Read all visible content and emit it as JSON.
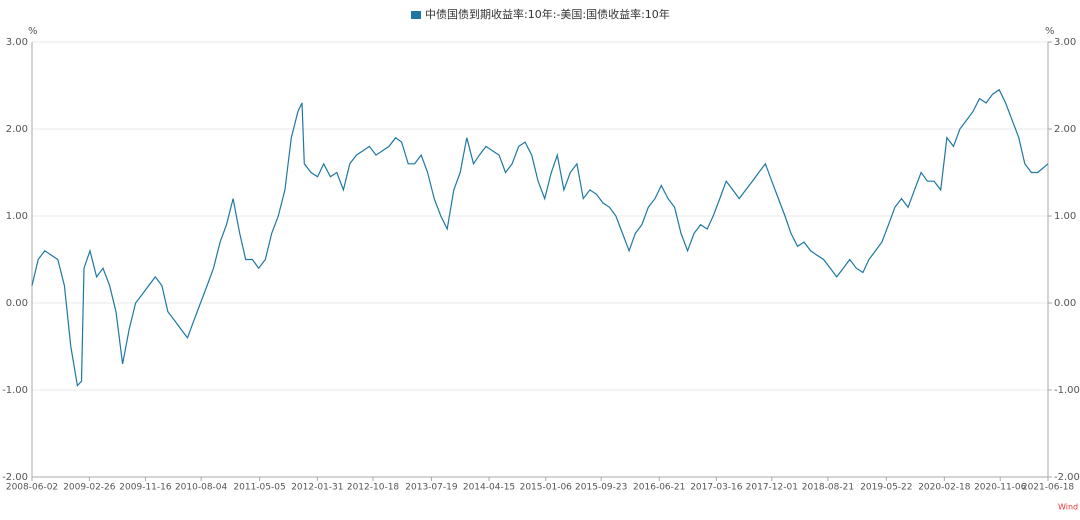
{
  "chart_data": {
    "type": "line",
    "legend": "top",
    "y_unit": "%",
    "y2_unit": "%",
    "source": "Wind",
    "grid": true,
    "xlim": [
      "2008-06-02",
      "2021-06-18"
    ],
    "xticks": [
      "2008-06-02",
      "2009-02-26",
      "2009-11-16",
      "2010-08-04",
      "2011-05-05",
      "2012-01-31",
      "2012-10-18",
      "2013-07-19",
      "2014-04-15",
      "2015-01-06",
      "2015-09-23",
      "2016-06-21",
      "2017-03-16",
      "2017-12-01",
      "2018-08-21",
      "2019-05-22",
      "2020-02-18",
      "2020-11-06",
      "2021-06-18"
    ],
    "ylim": [
      -2,
      3
    ],
    "yticks": [
      {
        "value": -2,
        "label": "-2.00"
      },
      {
        "value": -1,
        "label": "-1.00"
      },
      {
        "value": 0,
        "label": "0.00"
      },
      {
        "value": 1,
        "label": "1.00"
      },
      {
        "value": 2,
        "label": "2.00"
      },
      {
        "value": 3,
        "label": "3.00"
      }
    ],
    "y2lim": [
      -2,
      3
    ],
    "y2ticks": [
      {
        "value": -2,
        "label": "-2.00"
      },
      {
        "value": -1,
        "label": "-1.00"
      },
      {
        "value": 0,
        "label": "0.00"
      },
      {
        "value": 1,
        "label": "1.00"
      },
      {
        "value": 2,
        "label": "2.00"
      },
      {
        "value": 3,
        "label": "3.00"
      }
    ],
    "x": [
      "2008-06-02",
      "2008-07-01",
      "2008-08-01",
      "2008-09-01",
      "2008-10-01",
      "2008-11-01",
      "2008-12-01",
      "2009-01-01",
      "2009-01-20",
      "2009-02-01",
      "2009-03-01",
      "2009-04-01",
      "2009-05-01",
      "2009-06-01",
      "2009-07-01",
      "2009-08-01",
      "2009-09-01",
      "2009-10-01",
      "2009-11-01",
      "2009-12-01",
      "2010-01-01",
      "2010-02-01",
      "2010-03-01",
      "2010-04-01",
      "2010-05-01",
      "2010-06-01",
      "2010-07-01",
      "2010-08-01",
      "2010-09-01",
      "2010-10-01",
      "2010-11-01",
      "2010-12-01",
      "2011-01-01",
      "2011-02-01",
      "2011-03-01",
      "2011-04-01",
      "2011-05-01",
      "2011-06-01",
      "2011-07-01",
      "2011-08-01",
      "2011-09-01",
      "2011-10-01",
      "2011-11-01",
      "2011-11-20",
      "2011-12-01",
      "2012-01-01",
      "2012-02-01",
      "2012-03-01",
      "2012-04-01",
      "2012-05-01",
      "2012-06-01",
      "2012-07-01",
      "2012-08-01",
      "2012-09-01",
      "2012-10-01",
      "2012-11-01",
      "2012-12-01",
      "2013-01-01",
      "2013-02-01",
      "2013-03-01",
      "2013-04-01",
      "2013-05-01",
      "2013-06-01",
      "2013-07-01",
      "2013-08-01",
      "2013-09-01",
      "2013-10-01",
      "2013-11-01",
      "2013-12-01",
      "2014-01-01",
      "2014-02-01",
      "2014-03-01",
      "2014-04-01",
      "2014-05-01",
      "2014-06-01",
      "2014-07-01",
      "2014-08-01",
      "2014-09-01",
      "2014-10-01",
      "2014-11-01",
      "2014-12-01",
      "2015-01-01",
      "2015-02-01",
      "2015-03-01",
      "2015-04-01",
      "2015-05-01",
      "2015-06-01",
      "2015-07-01",
      "2015-08-01",
      "2015-09-01",
      "2015-10-01",
      "2015-11-01",
      "2015-12-01",
      "2016-01-01",
      "2016-02-01",
      "2016-03-01",
      "2016-04-01",
      "2016-05-01",
      "2016-06-01",
      "2016-07-01",
      "2016-08-01",
      "2016-09-01",
      "2016-10-01",
      "2016-11-01",
      "2016-12-01",
      "2017-01-01",
      "2017-02-01",
      "2017-03-01",
      "2017-04-01",
      "2017-05-01",
      "2017-06-01",
      "2017-07-01",
      "2017-08-01",
      "2017-09-01",
      "2017-10-01",
      "2017-11-01",
      "2017-12-01",
      "2018-01-01",
      "2018-02-01",
      "2018-03-01",
      "2018-04-01",
      "2018-05-01",
      "2018-06-01",
      "2018-07-01",
      "2018-08-01",
      "2018-09-01",
      "2018-10-01",
      "2018-11-01",
      "2018-12-01",
      "2019-01-01",
      "2019-02-01",
      "2019-03-01",
      "2019-04-01",
      "2019-05-01",
      "2019-06-01",
      "2019-07-01",
      "2019-08-01",
      "2019-09-01",
      "2019-10-01",
      "2019-11-01",
      "2019-12-01",
      "2020-01-01",
      "2020-02-01",
      "2020-03-01",
      "2020-04-01",
      "2020-05-01",
      "2020-06-01",
      "2020-07-01",
      "2020-08-01",
      "2020-09-01",
      "2020-10-01",
      "2020-11-01",
      "2020-12-01",
      "2021-01-01",
      "2021-02-01",
      "2021-03-01",
      "2021-04-01",
      "2021-05-01",
      "2021-06-18"
    ],
    "series": [
      {
        "name": "中债国债到期收益率:10年:-美国:国债收益率:10年",
        "color": "#1f77a4",
        "values": [
          0.2,
          0.5,
          0.6,
          0.55,
          0.5,
          0.2,
          -0.5,
          -0.95,
          -0.9,
          0.4,
          0.6,
          0.3,
          0.4,
          0.2,
          -0.1,
          -0.7,
          -0.3,
          0.0,
          0.1,
          0.2,
          0.3,
          0.2,
          -0.1,
          -0.2,
          -0.3,
          -0.4,
          -0.2,
          0.0,
          0.2,
          0.4,
          0.7,
          0.9,
          1.2,
          0.8,
          0.5,
          0.5,
          0.4,
          0.5,
          0.8,
          1.0,
          1.3,
          1.9,
          2.2,
          2.3,
          1.6,
          1.5,
          1.45,
          1.6,
          1.45,
          1.5,
          1.3,
          1.6,
          1.7,
          1.75,
          1.8,
          1.7,
          1.75,
          1.8,
          1.9,
          1.85,
          1.6,
          1.6,
          1.7,
          1.5,
          1.2,
          1.0,
          0.85,
          1.3,
          1.5,
          1.9,
          1.6,
          1.7,
          1.8,
          1.75,
          1.7,
          1.5,
          1.6,
          1.8,
          1.85,
          1.7,
          1.4,
          1.2,
          1.5,
          1.7,
          1.3,
          1.5,
          1.6,
          1.2,
          1.3,
          1.25,
          1.15,
          1.1,
          1.0,
          0.8,
          0.6,
          0.8,
          0.9,
          1.1,
          1.2,
          1.35,
          1.2,
          1.1,
          0.8,
          0.6,
          0.8,
          0.9,
          0.85,
          1.0,
          1.2,
          1.4,
          1.3,
          1.2,
          1.3,
          1.4,
          1.5,
          1.6,
          1.4,
          1.2,
          1.0,
          0.8,
          0.65,
          0.7,
          0.6,
          0.55,
          0.5,
          0.4,
          0.3,
          0.4,
          0.5,
          0.4,
          0.35,
          0.5,
          0.6,
          0.7,
          0.9,
          1.1,
          1.2,
          1.1,
          1.3,
          1.5,
          1.4,
          1.4,
          1.3,
          1.9,
          1.8,
          2.0,
          2.1,
          2.2,
          2.35,
          2.3,
          2.4,
          2.45,
          2.3,
          2.1,
          1.9,
          1.6,
          1.5,
          1.5,
          1.6
        ]
      }
    ]
  }
}
